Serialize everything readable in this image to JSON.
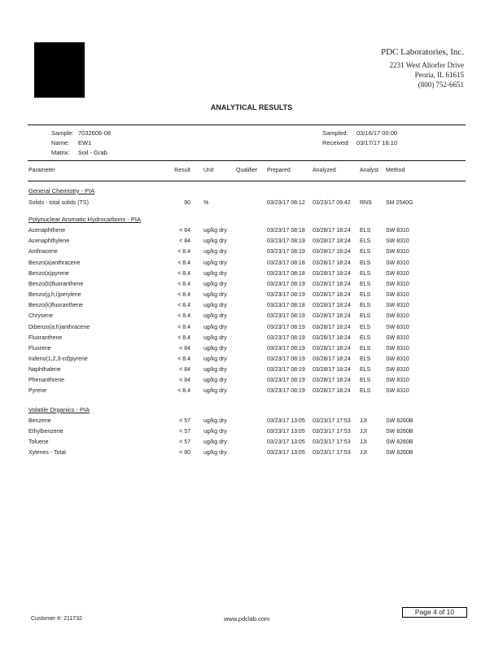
{
  "company": {
    "name": "PDC Laboratories, Inc.",
    "address": "2231 West Altorfer Drive",
    "city": "Peoria, IL 61615",
    "phone": "(800) 752-6651"
  },
  "title": "ANALYTICAL RESULTS",
  "sample": {
    "sample_label": "Sample:",
    "sample_id": "7032606-08",
    "name_label": "Name:",
    "name": "EW1",
    "matrix_label": "Matrix:",
    "matrix": "Soil - Grab",
    "sampled_label": "Sampled:",
    "sampled": "03/16/17 00:00",
    "received_label": "Received:",
    "received": "03/17/17 16:10"
  },
  "columns": [
    "Parameter",
    "Result",
    "Unit",
    "Qualifier",
    "Prepared",
    "Analyzed",
    "Analyst",
    "Method"
  ],
  "sections": [
    {
      "title": "General Chemistry - PIA",
      "rows": [
        [
          "Solids - total solids (TS)",
          "90",
          "%",
          "",
          "03/23/17 08:12",
          "03/23/17 09:42",
          "RNS",
          "SM 2540G"
        ]
      ]
    },
    {
      "title": "Polynuclear Aromatic Hydrocarbons - PIA",
      "rows": [
        [
          "Acenaphthene",
          "< 84",
          "ug/kg dry",
          "",
          "03/23/17 08:18",
          "03/28/17 18:24",
          "ELS",
          "SW 8310"
        ],
        [
          "Acenaphthylene",
          "< 84",
          "ug/kg dry",
          "",
          "03/23/17 08:19",
          "03/28/17 18:24",
          "ELS",
          "SW 8310"
        ],
        [
          "Anthracene",
          "< 8.4",
          "ug/kg dry",
          "",
          "03/23/17 08:19",
          "03/28/17 18:24",
          "ELS",
          "SW 8310"
        ],
        [
          "Benzo(a)anthracene",
          "< 8.4",
          "ug/kg dry",
          "",
          "03/23/17 08:18",
          "03/28/17 18:24",
          "ELS",
          "SW 8310"
        ],
        [
          "Benzo(a)pyrene",
          "< 8.4",
          "ug/kg dry",
          "",
          "03/23/17 08:18",
          "03/28/17 18:24",
          "ELS",
          "SW 8310"
        ],
        [
          "Benzo(b)fluoranthene",
          "< 8.4",
          "ug/kg dry",
          "",
          "03/23/17 08:19",
          "03/28/17 18:24",
          "ELS",
          "SW 8310"
        ],
        [
          "Benzo(g,h,i)perylene",
          "< 8.4",
          "ug/kg dry",
          "",
          "03/23/17 08:19",
          "03/28/17 18:24",
          "ELS",
          "SW 8310"
        ],
        [
          "Benzo(k)fluoranthene",
          "< 8.4",
          "ug/kg dry",
          "",
          "03/23/17 08:18",
          "03/28/17 18:24",
          "ELS",
          "SW 8310"
        ],
        [
          "Chrysene",
          "< 8.4",
          "ug/kg dry",
          "",
          "03/23/17 08:19",
          "03/28/17 18:24",
          "ELS",
          "SW 8310"
        ],
        [
          "Dibenzo(a,h)anthracene",
          "< 8.4",
          "ug/kg dry",
          "",
          "03/23/17 08:19",
          "03/28/17 18:24",
          "ELS",
          "SW 8310"
        ],
        [
          "Fluoranthene",
          "< 8.4",
          "ug/kg dry",
          "",
          "03/23/17 08:19",
          "03/28/17 18:24",
          "ELS",
          "SW 8310"
        ],
        [
          "Fluorene",
          "< 84",
          "ug/kg dry",
          "",
          "03/23/17 08:19",
          "03/28/17 18:24",
          "ELS",
          "SW 8310"
        ],
        [
          "Indeno(1,2,3-cd)pyrene",
          "< 8.4",
          "ug/kg dry",
          "",
          "03/23/17 08:19",
          "03/28/17 18:24",
          "ELS",
          "SW 8310"
        ],
        [
          "Naphthalene",
          "< 84",
          "ug/kg dry",
          "",
          "03/23/17 08:19",
          "03/28/17 18:24",
          "ELS",
          "SW 8310"
        ],
        [
          "Phenanthrene",
          "< 84",
          "ug/kg dry",
          "",
          "03/23/17 08:19",
          "03/28/17 18:24",
          "ELS",
          "SW 8310"
        ],
        [
          "Pyrene",
          "< 8.4",
          "ug/kg dry",
          "",
          "03/23/17 08:19",
          "03/28/17 18:24",
          "ELS",
          "SW 8310"
        ]
      ]
    },
    {
      "title": "Volatile Organics - PIA",
      "rows": [
        [
          "Benzene",
          "< 57",
          "ug/kg dry",
          "",
          "03/23/17 13:05",
          "03/23/17 17:53",
          "JJI",
          "SW 8260B"
        ],
        [
          "Ethylbenzene",
          "< 57",
          "ug/kg dry",
          "",
          "03/23/17 13:05",
          "03/23/17 17:53",
          "JJI",
          "SW 8260B"
        ],
        [
          "Toluene",
          "< 57",
          "ug/kg dry",
          "",
          "03/23/17 13:05",
          "03/23/17 17:53",
          "JJI",
          "SW 8260B"
        ],
        [
          "Xylenes - Total",
          "< 80",
          "ug/kg dry",
          "",
          "03/23/17 13:05",
          "03/23/17 17:53",
          "JJI",
          "SW 8260B"
        ]
      ]
    }
  ],
  "footer": {
    "customer": "Customer #: 211732",
    "website": "www.pdclab.com",
    "page": "Page 4 of 10"
  }
}
